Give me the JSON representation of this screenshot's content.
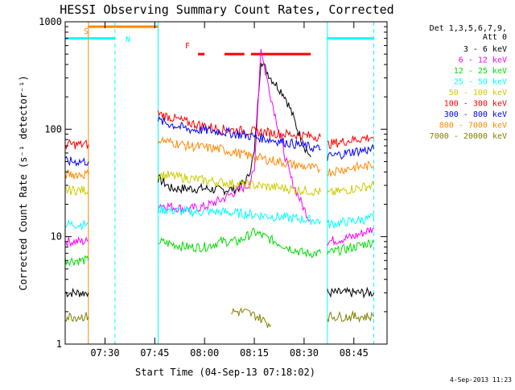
{
  "chart_data": {
    "type": "line",
    "title": "HESSI Observing Summary Count Rates, Corrected",
    "ylabel": "Corrected Count Rate (s⁻¹ detector⁻¹)",
    "xlabel": "Start Time (04-Sep-13 07:18:02)",
    "y_scale": "log",
    "ylim": [
      1,
      1000
    ],
    "xlim": [
      "07:18",
      "08:55"
    ],
    "x_ticks": [
      "07:30",
      "07:45",
      "08:00",
      "08:15",
      "08:30",
      "08:45"
    ],
    "y_ticks": [
      "1",
      "10",
      "100",
      "1000"
    ],
    "timestamp": "4-Sep-2013 11:23",
    "legend": {
      "position": "right",
      "header": [
        "Det 1,3,5,6,7,9,",
        "Att 0"
      ],
      "entries": [
        {
          "label": "3 - 6 keV",
          "color": "#000000"
        },
        {
          "label": "6 - 12 keV",
          "color": "#ff00ff"
        },
        {
          "label": "12 - 25 keV",
          "color": "#00dd00"
        },
        {
          "label": "25 - 50 keV",
          "color": "#00ffff"
        },
        {
          "label": "50 - 100 keV",
          "color": "#cccc00"
        },
        {
          "label": "100 - 300 keV",
          "color": "#ff0000"
        },
        {
          "label": "300 - 800 keV",
          "color": "#0000ff"
        },
        {
          "label": "800 - 7000 keV",
          "color": "#ff8800"
        },
        {
          "label": "7000 - 20000 keV",
          "color": "#808000"
        }
      ]
    },
    "markers": {
      "saa_label": "S",
      "night_label": "N",
      "flare_label": "F"
    },
    "series": [
      {
        "name": "3 - 6 keV",
        "color": "#000000",
        "segments": [
          {
            "points": [
              [
                "07:18",
                3
              ],
              [
                "07:25",
                3
              ]
            ]
          },
          {
            "points": [
              [
                "07:46",
                35
              ],
              [
                "07:50",
                28
              ],
              [
                "07:55",
                28
              ],
              [
                "08:00",
                28
              ],
              [
                "08:05",
                27
              ],
              [
                "08:10",
                28
              ],
              [
                "08:13",
                35
              ],
              [
                "08:15",
                60
              ],
              [
                "08:17",
                450
              ],
              [
                "08:18",
                380
              ],
              [
                "08:20",
                300
              ],
              [
                "08:22",
                250
              ],
              [
                "08:24",
                210
              ],
              [
                "08:26",
                150
              ],
              [
                "08:28",
                100
              ],
              [
                "08:30",
                70
              ],
              [
                "08:32",
                55
              ]
            ]
          },
          {
            "points": [
              [
                "08:37",
                3
              ],
              [
                "08:45",
                3
              ],
              [
                "08:51",
                3
              ]
            ]
          }
        ]
      },
      {
        "name": "6 - 12 keV",
        "color": "#ff00ff",
        "segments": [
          {
            "points": [
              [
                "07:18",
                9
              ],
              [
                "07:25",
                9
              ]
            ]
          },
          {
            "points": [
              [
                "07:46",
                20
              ],
              [
                "07:50",
                19
              ],
              [
                "07:55",
                18
              ],
              [
                "08:00",
                19
              ],
              [
                "08:05",
                22
              ],
              [
                "08:10",
                27
              ],
              [
                "08:13",
                30
              ],
              [
                "08:15",
                40
              ],
              [
                "08:17",
                580
              ],
              [
                "08:18",
                380
              ],
              [
                "08:20",
                200
              ],
              [
                "08:22",
                110
              ],
              [
                "08:24",
                60
              ],
              [
                "08:26",
                35
              ],
              [
                "08:28",
                25
              ],
              [
                "08:30",
                18
              ],
              [
                "08:32",
                14
              ]
            ]
          },
          {
            "points": [
              [
                "08:37",
                9
              ],
              [
                "08:45",
                10
              ],
              [
                "08:51",
                12
              ]
            ]
          }
        ]
      },
      {
        "name": "12 - 25 keV",
        "color": "#00dd00",
        "segments": [
          {
            "points": [
              [
                "07:18",
                6
              ],
              [
                "07:25",
                6
              ]
            ]
          },
          {
            "points": [
              [
                "07:46",
                9
              ],
              [
                "07:55",
                8
              ],
              [
                "08:00",
                8
              ],
              [
                "08:05",
                9
              ],
              [
                "08:10",
                9
              ],
              [
                "08:15",
                11
              ],
              [
                "08:18",
                10
              ],
              [
                "08:25",
                8
              ],
              [
                "08:30",
                7
              ],
              [
                "08:35",
                7
              ]
            ]
          },
          {
            "points": [
              [
                "08:37",
                7
              ],
              [
                "08:45",
                8
              ],
              [
                "08:51",
                9
              ]
            ]
          }
        ]
      },
      {
        "name": "25 - 50 keV",
        "color": "#00ffff",
        "segments": [
          {
            "points": [
              [
                "07:18",
                13
              ],
              [
                "07:25",
                13
              ]
            ]
          },
          {
            "points": [
              [
                "07:46",
                18
              ],
              [
                "07:55",
                17
              ],
              [
                "08:05",
                17
              ],
              [
                "08:15",
                16
              ],
              [
                "08:25",
                15
              ],
              [
                "08:35",
                14
              ]
            ]
          },
          {
            "points": [
              [
                "08:37",
                13
              ],
              [
                "08:45",
                14
              ],
              [
                "08:51",
                15
              ]
            ]
          }
        ]
      },
      {
        "name": "50 - 100 keV",
        "color": "#cccc00",
        "segments": [
          {
            "points": [
              [
                "07:18",
                27
              ],
              [
                "07:25",
                27
              ]
            ]
          },
          {
            "points": [
              [
                "07:46",
                38
              ],
              [
                "07:55",
                35
              ],
              [
                "08:05",
                32
              ],
              [
                "08:15",
                30
              ],
              [
                "08:25",
                28
              ],
              [
                "08:35",
                26
              ]
            ]
          },
          {
            "points": [
              [
                "08:37",
                25
              ],
              [
                "08:45",
                28
              ],
              [
                "08:51",
                30
              ]
            ]
          }
        ]
      },
      {
        "name": "100 - 300 keV",
        "color": "#ff0000",
        "segments": [
          {
            "points": [
              [
                "07:18",
                72
              ],
              [
                "07:25",
                72
              ]
            ]
          },
          {
            "points": [
              [
                "07:46",
                140
              ],
              [
                "07:55",
                115
              ],
              [
                "08:05",
                100
              ],
              [
                "08:15",
                95
              ],
              [
                "08:25",
                90
              ],
              [
                "08:35",
                85
              ]
            ]
          },
          {
            "points": [
              [
                "08:37",
                72
              ],
              [
                "08:45",
                80
              ],
              [
                "08:51",
                85
              ]
            ]
          }
        ]
      },
      {
        "name": "300 - 800 keV",
        "color": "#0000ff",
        "segments": [
          {
            "points": [
              [
                "07:18",
                50
              ],
              [
                "07:25",
                50
              ]
            ]
          },
          {
            "points": [
              [
                "07:46",
                120
              ],
              [
                "07:55",
                100
              ],
              [
                "08:05",
                95
              ],
              [
                "08:15",
                85
              ],
              [
                "08:25",
                75
              ],
              [
                "08:35",
                65
              ]
            ]
          },
          {
            "points": [
              [
                "08:37",
                55
              ],
              [
                "08:45",
                62
              ],
              [
                "08:51",
                65
              ]
            ]
          }
        ]
      },
      {
        "name": "800 - 7000 keV",
        "color": "#ff8800",
        "segments": [
          {
            "points": [
              [
                "07:18",
                38
              ],
              [
                "07:25",
                38
              ]
            ]
          },
          {
            "points": [
              [
                "07:46",
                80
              ],
              [
                "07:55",
                70
              ],
              [
                "08:05",
                65
              ],
              [
                "08:15",
                55
              ],
              [
                "08:25",
                48
              ],
              [
                "08:35",
                42
              ]
            ]
          },
          {
            "points": [
              [
                "08:37",
                40
              ],
              [
                "08:45",
                44
              ],
              [
                "08:51",
                46
              ]
            ]
          }
        ]
      },
      {
        "name": "7000 - 20000 keV",
        "color": "#808000",
        "segments": [
          {
            "points": [
              [
                "07:18",
                1.8
              ],
              [
                "07:25",
                1.8
              ]
            ]
          },
          {
            "points": [
              [
                "08:08",
                2
              ],
              [
                "08:12",
                2
              ],
              [
                "08:16",
                1.8
              ],
              [
                "08:20",
                1.5
              ]
            ]
          },
          {
            "points": [
              [
                "08:37",
                1.8
              ],
              [
                "08:45",
                1.8
              ],
              [
                "08:51",
                1.8
              ]
            ]
          }
        ]
      }
    ],
    "spans": [
      {
        "label": "N",
        "color": "#00ffff",
        "y": 700,
        "ranges": [
          [
            "07:18",
            "07:33"
          ],
          [
            "08:37",
            "08:51"
          ]
        ]
      },
      {
        "label": "S",
        "color": "#ff8800",
        "y": 900,
        "ranges": [
          [
            "07:25",
            "07:46"
          ]
        ]
      },
      {
        "label": "F",
        "color": "#ff0000",
        "y": 500,
        "ranges": [
          [
            "07:58",
            "08:00"
          ],
          [
            "08:06",
            "08:12"
          ],
          [
            "08:14",
            "08:32"
          ]
        ]
      }
    ],
    "vlines": [
      {
        "x": "07:18",
        "color": "#00ffff",
        "dash": false
      },
      {
        "x": "07:25",
        "color": "#ff8800",
        "dash": false
      },
      {
        "x": "07:33",
        "color": "#00ffff",
        "dash": true
      },
      {
        "x": "07:46",
        "color": "#ff8800",
        "dash": true
      },
      {
        "x": "07:46",
        "color": "#00ffff",
        "dash": false
      },
      {
        "x": "08:37",
        "color": "#00ffff",
        "dash": false
      },
      {
        "x": "08:51",
        "color": "#00ffff",
        "dash": true
      }
    ]
  }
}
